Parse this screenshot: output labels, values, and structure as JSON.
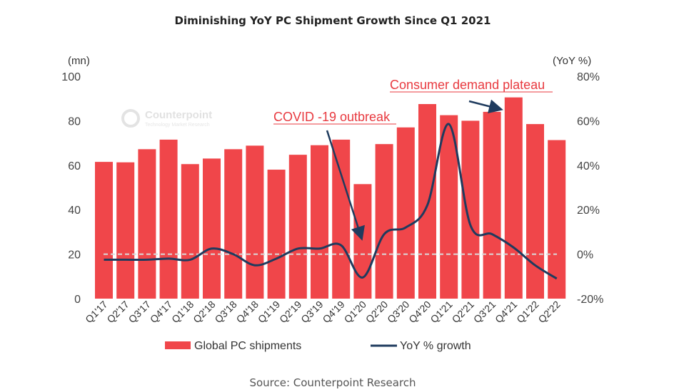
{
  "title": "Diminishing YoY PC Shipment Growth Since Q1 2021",
  "source": "Source: Counterpoint Research",
  "watermark": {
    "name": "Counterpoint",
    "tagline": "Technology Market Research"
  },
  "colors": {
    "bars": "#f0464a",
    "line": "#1f3b5e",
    "annotation": "#e8393f",
    "zero_line": "#d9d9d9"
  },
  "chart_data": {
    "type": "bar",
    "categories": [
      "Q1'17",
      "Q2'17",
      "Q3'17",
      "Q4'17",
      "Q1'18",
      "Q2'18",
      "Q3'18",
      "Q4'18",
      "Q1'19",
      "Q2'19",
      "Q3'19",
      "Q4'19",
      "Q1'20",
      "Q2'20",
      "Q3'20",
      "Q4'20",
      "Q1'21",
      "Q2'21",
      "Q3'21",
      "Q4'21",
      "Q1'22",
      "Q2'22"
    ],
    "series": [
      {
        "name": "Global PC shipments",
        "type": "bar",
        "axis": "left",
        "values": [
          61.5,
          61.3,
          67.2,
          71.5,
          60.5,
          63.0,
          67.2,
          68.8,
          58.0,
          64.7,
          69.0,
          71.5,
          51.5,
          69.5,
          77.0,
          87.5,
          82.5,
          80.0,
          84.0,
          90.5,
          78.5,
          71.3
        ]
      },
      {
        "name": "YoY % growth",
        "type": "line",
        "axis": "right",
        "values": [
          -2.5,
          -2.5,
          -2.5,
          -2.0,
          -2.5,
          2.5,
          0.0,
          -5.0,
          -2.0,
          2.5,
          2.5,
          4.0,
          -10.5,
          9.0,
          12.0,
          22.0,
          58.5,
          13.0,
          9.0,
          3.0,
          -5.0,
          -11.0
        ]
      }
    ],
    "y_left": {
      "label": "(mn)",
      "ylim": [
        0,
        100
      ],
      "ticks": [
        "0",
        "20",
        "40",
        "60",
        "80",
        "100"
      ]
    },
    "y_right": {
      "label": "(YoY %)",
      "ylim": [
        -20,
        80
      ],
      "ticks": [
        "-20%",
        "0%",
        "20%",
        "40%",
        "60%",
        "80%"
      ]
    },
    "grid": false,
    "legend_position": "bottom",
    "annotations": [
      {
        "text": "COVID -19 outbreak",
        "category": "Q1'20"
      },
      {
        "text": "Consumer demand plateau",
        "category": "Q4'21"
      }
    ]
  }
}
